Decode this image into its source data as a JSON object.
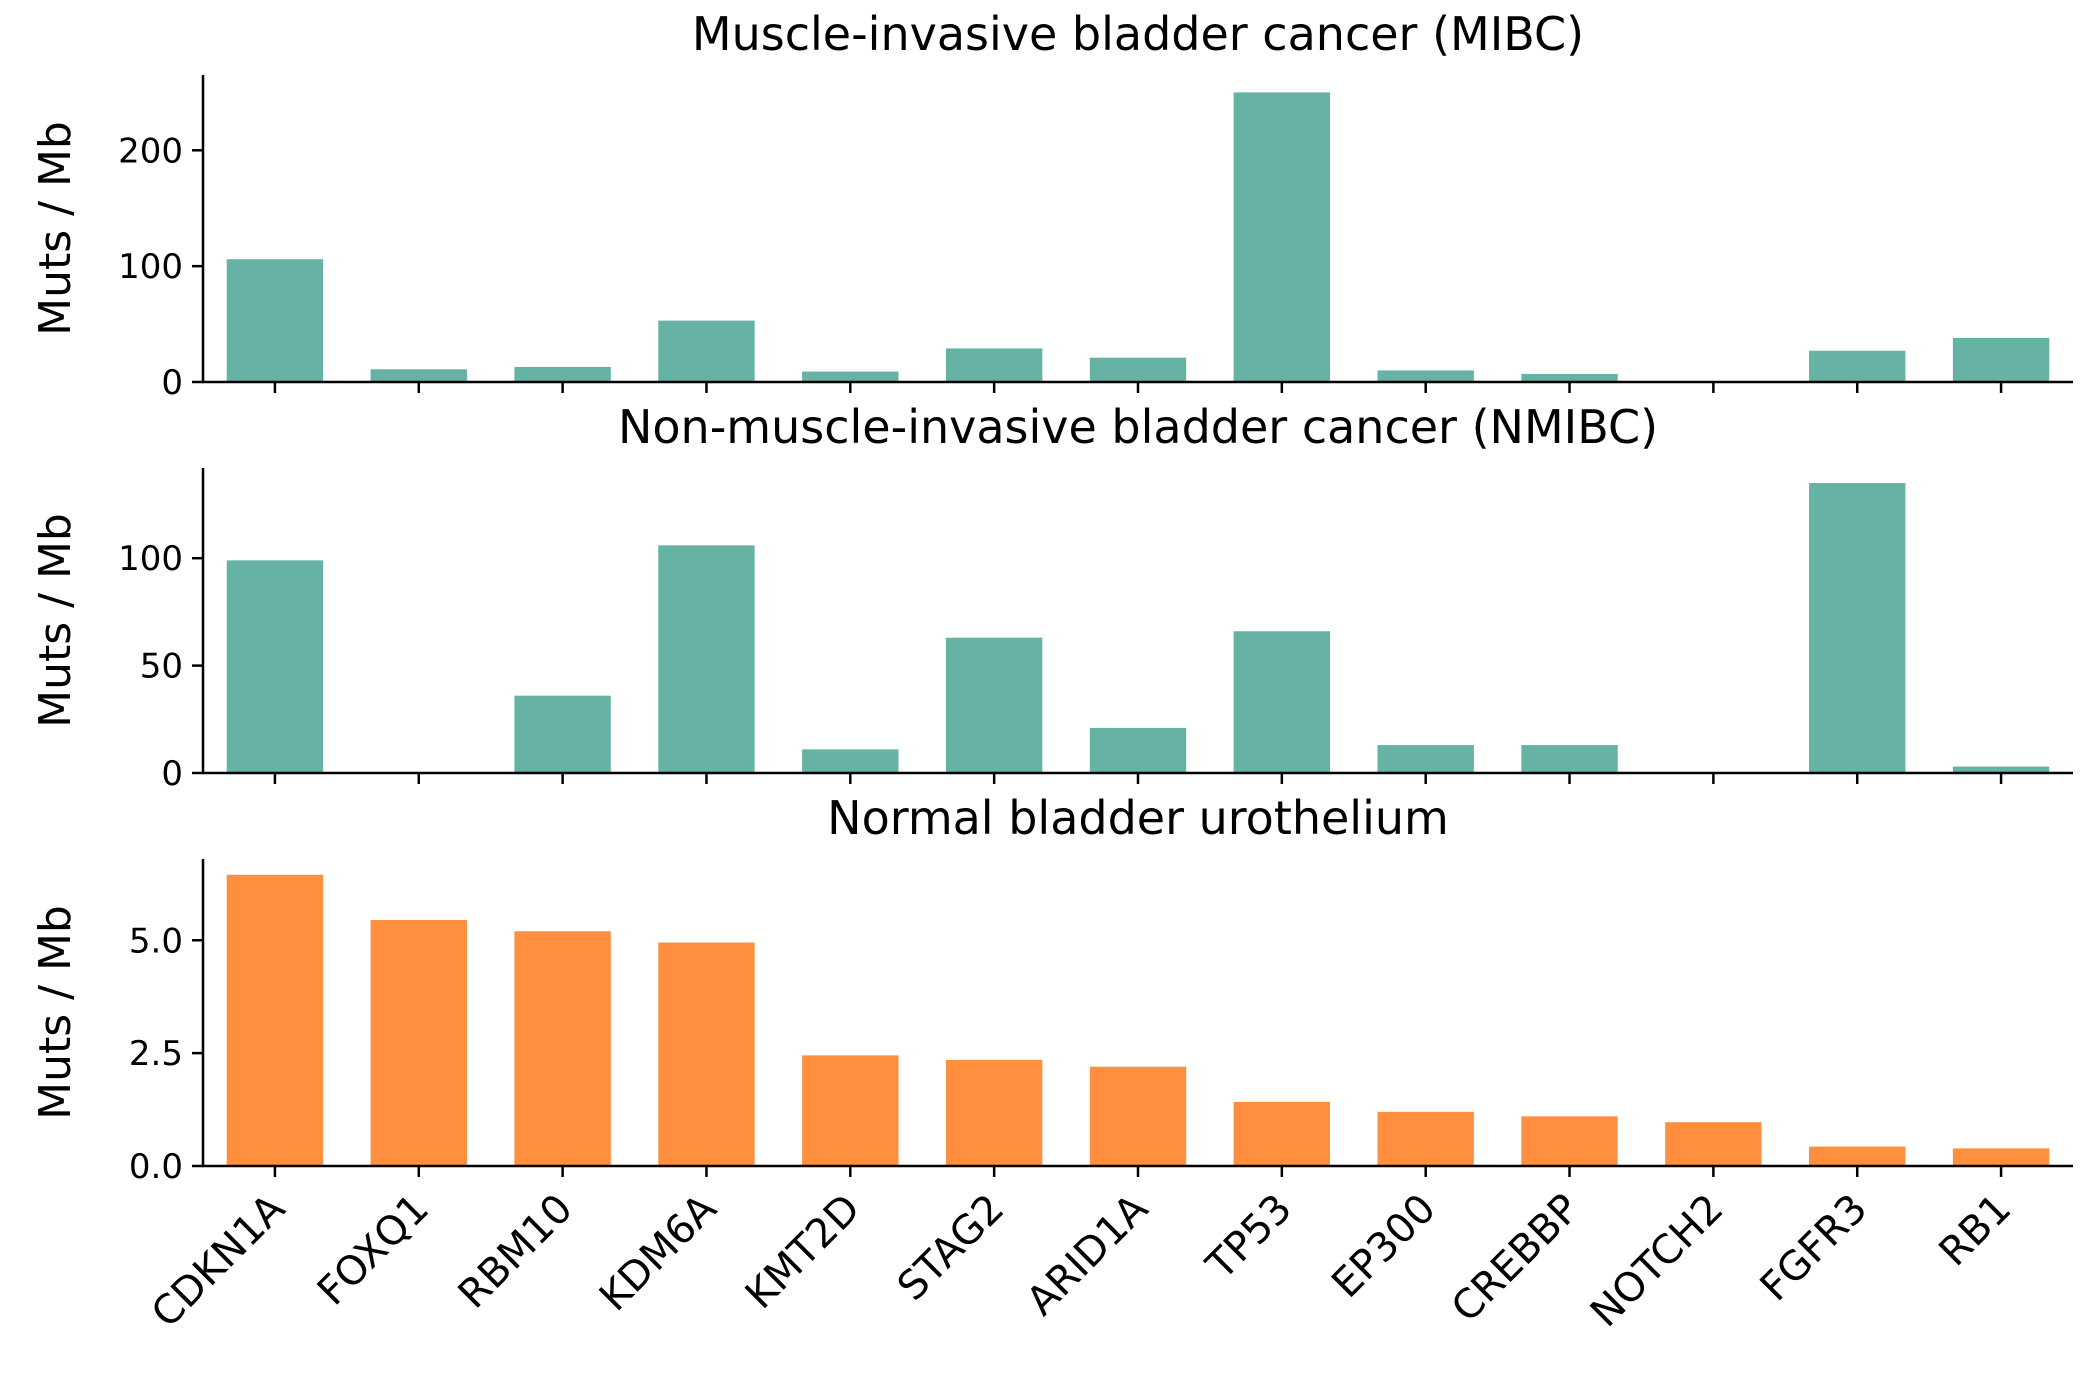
{
  "chart_data": [
    {
      "type": "bar",
      "title": "Muscle-invasive bladder cancer (MIBC)",
      "ylabel": "Muts / Mb",
      "xlabel": "",
      "categories": [
        "CDKN1A",
        "FOXQ1",
        "RBM10",
        "KDM6A",
        "KMT2D",
        "STAG2",
        "ARID1A",
        "TP53",
        "EP300",
        "CREBBP",
        "NOTCH2",
        "FGFR3",
        "RB1"
      ],
      "values": [
        106,
        11,
        13,
        53,
        9,
        29,
        21,
        250,
        10,
        7,
        0,
        27,
        38
      ],
      "ylim": [
        0,
        265
      ],
      "yticks": [
        0,
        100,
        200
      ],
      "ytick_labels": [
        "0",
        "100",
        "200"
      ],
      "show_xtick_labels": false,
      "color": "#66b3a6",
      "grid": false
    },
    {
      "type": "bar",
      "title": "Non-muscle-invasive bladder cancer (NMIBC)",
      "ylabel": "Muts / Mb",
      "xlabel": "",
      "categories": [
        "CDKN1A",
        "FOXQ1",
        "RBM10",
        "KDM6A",
        "KMT2D",
        "STAG2",
        "ARID1A",
        "TP53",
        "EP300",
        "CREBBP",
        "NOTCH2",
        "FGFR3",
        "RB1"
      ],
      "values": [
        99,
        0,
        36,
        106,
        11,
        63,
        21,
        66,
        13,
        13,
        0,
        135,
        3
      ],
      "ylim": [
        0,
        142
      ],
      "yticks": [
        0,
        50,
        100
      ],
      "ytick_labels": [
        "0",
        "50",
        "100"
      ],
      "show_xtick_labels": false,
      "color": "#66b3a6",
      "grid": false
    },
    {
      "type": "bar",
      "title": "Normal bladder urothelium",
      "ylabel": "Muts / Mb",
      "xlabel": "",
      "categories": [
        "CDKN1A",
        "FOXQ1",
        "RBM10",
        "KDM6A",
        "KMT2D",
        "STAG2",
        "ARID1A",
        "TP53",
        "EP300",
        "CREBBP",
        "NOTCH2",
        "FGFR3",
        "RB1"
      ],
      "values": [
        6.45,
        5.45,
        5.2,
        4.95,
        2.45,
        2.35,
        2.2,
        1.42,
        1.2,
        1.1,
        0.97,
        0.43,
        0.39
      ],
      "ylim": [
        0,
        6.8
      ],
      "yticks": [
        0,
        2.5,
        5
      ],
      "ytick_labels": [
        "0.0",
        "2.5",
        "5.0"
      ],
      "show_xtick_labels": true,
      "color": "#fd8f3e",
      "grid": false
    }
  ]
}
